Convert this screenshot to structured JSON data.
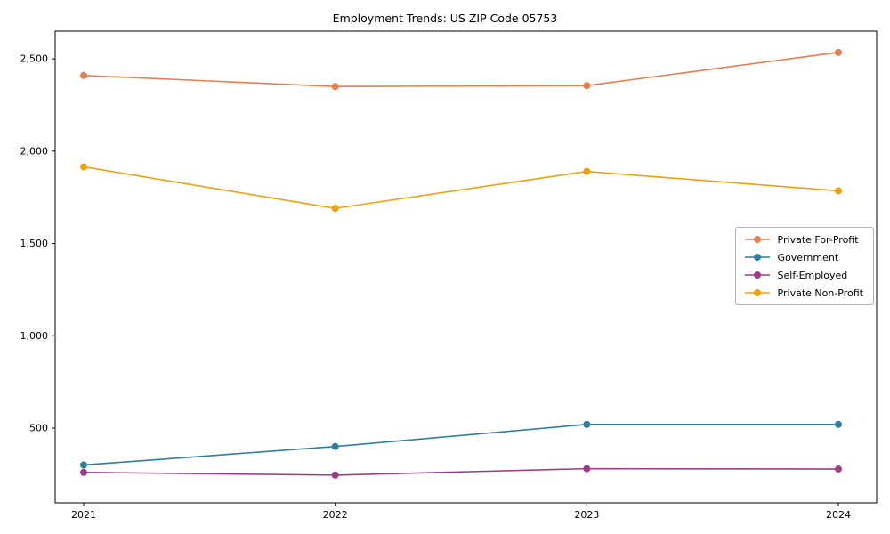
{
  "chart_data": {
    "type": "line",
    "title": "Employment Trends: US ZIP Code 05753",
    "x": [
      "2021",
      "2022",
      "2023",
      "2024"
    ],
    "series": [
      {
        "name": "Private For-Profit",
        "color": "#e87d4e",
        "values": [
          2410,
          2350,
          2355,
          2535
        ]
      },
      {
        "name": "Government",
        "color": "#2d7f9e",
        "values": [
          300,
          400,
          520,
          520
        ]
      },
      {
        "name": "Self-Employed",
        "color": "#9e3d87",
        "values": [
          260,
          245,
          280,
          278
        ]
      },
      {
        "name": "Private Non-Profit",
        "color": "#efa00b",
        "values": [
          1915,
          1690,
          1890,
          1785
        ]
      }
    ],
    "yticks": [
      500,
      1000,
      1500,
      2000,
      2500
    ],
    "ylim": [
      95,
      2650
    ],
    "xlabel": "",
    "ylabel": "",
    "grid": false,
    "legend_position": "center right",
    "axis_color": "#000000",
    "background_color": "#ffffff"
  }
}
